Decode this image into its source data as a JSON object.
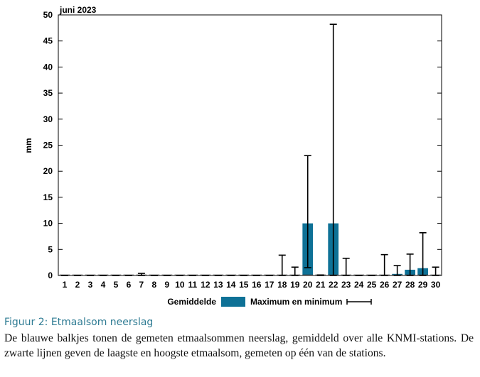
{
  "chart_data": {
    "type": "bar",
    "title": "juni 2023",
    "xlabel": "",
    "ylabel": "mm",
    "ylim": [
      0,
      50
    ],
    "yticks": [
      0,
      5,
      10,
      15,
      20,
      25,
      30,
      35,
      40,
      45,
      50
    ],
    "categories": [
      "1",
      "2",
      "3",
      "4",
      "5",
      "6",
      "7",
      "8",
      "9",
      "10",
      "11",
      "12",
      "13",
      "14",
      "15",
      "16",
      "17",
      "18",
      "19",
      "20",
      "21",
      "22",
      "23",
      "24",
      "25",
      "26",
      "27",
      "28",
      "29",
      "30"
    ],
    "series": [
      {
        "name": "Gemiddelde",
        "type": "bar",
        "color": "#0e7196",
        "values": [
          0,
          0,
          0,
          0,
          0,
          0,
          0,
          0,
          0,
          0,
          0,
          0,
          0,
          0,
          0,
          0,
          0,
          0.1,
          0.1,
          10,
          0.1,
          10,
          0.1,
          0,
          0,
          0.1,
          0.3,
          1.1,
          1.4,
          0.1
        ]
      },
      {
        "name": "Maximum en minimum",
        "type": "errorbar",
        "color": "#000000",
        "min": [
          0,
          0,
          0,
          0,
          0,
          0,
          0,
          0,
          0,
          0,
          0,
          0,
          0,
          0,
          0,
          0,
          0,
          0,
          0,
          1.5,
          0,
          0,
          0,
          0,
          0,
          0,
          0,
          0,
          0,
          0
        ],
        "max": [
          0,
          0,
          0,
          0,
          0,
          0,
          0.4,
          0,
          0,
          0,
          0,
          0,
          0,
          0,
          0,
          0,
          0,
          3.9,
          1.6,
          23,
          0.1,
          48.2,
          3.3,
          0,
          0,
          4.0,
          1.9,
          4.1,
          8.2,
          1.6
        ]
      }
    ],
    "grid": false,
    "legend": "bottom"
  },
  "caption": {
    "title": "Figuur 2: Etmaalsom neerslag",
    "body": "De blauwe balkjes tonen de gemeten etmaalsommen neerslag, gemiddeld over alle KNMI-stations. De zwarte lijnen geven de laagste en hoogste etmaalsom, gemeten op één van de stations."
  }
}
